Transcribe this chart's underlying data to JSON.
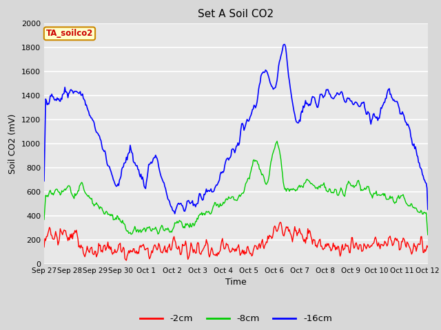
{
  "title": "Set A Soil CO2",
  "xlabel": "Time",
  "ylabel": "Soil CO2 (mV)",
  "ylim": [
    0,
    2000
  ],
  "yticks": [
    0,
    200,
    400,
    600,
    800,
    1000,
    1200,
    1400,
    1600,
    1800,
    2000
  ],
  "fig_bg_color": "#d8d8d8",
  "plot_bg_color": "#e8e8e8",
  "grid_color": "#ffffff",
  "series": [
    {
      "label": "-2cm",
      "color": "#ff0000"
    },
    {
      "label": "-8cm",
      "color": "#00cc00"
    },
    {
      "label": "-16cm",
      "color": "#0000ff"
    }
  ],
  "watermark_text": "TA_soilco2",
  "watermark_bg": "#ffffcc",
  "watermark_border": "#cc8800",
  "watermark_text_color": "#cc0000",
  "xtick_labels": [
    "Sep 27",
    "Sep 28",
    "Sep 29",
    "Sep 30",
    "Oct 1",
    "Oct 2",
    "Oct 3",
    "Oct 4",
    "Oct 5",
    "Oct 6",
    "Oct 7",
    "Oct 8",
    "Oct 9",
    "Oct 10",
    "Oct 11",
    "Oct 12"
  ],
  "n_points": 500,
  "seed": 42
}
